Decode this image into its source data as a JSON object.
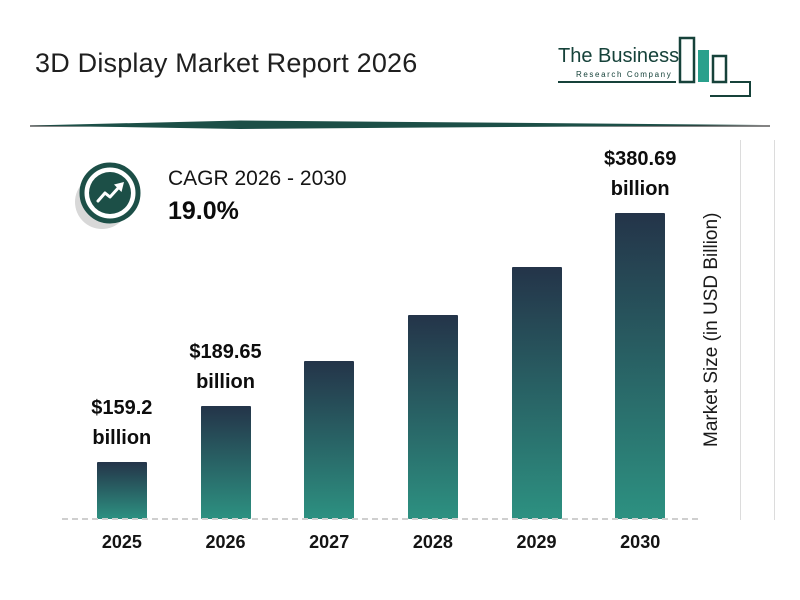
{
  "header": {
    "title": "3D Display Market Report 2026",
    "logo": {
      "line1": "The Business",
      "line2": "Research Company"
    }
  },
  "cagr": {
    "label": "CAGR 2026 - 2030",
    "value": "19.0%"
  },
  "chart_data": {
    "type": "bar",
    "title": "3D Display Market Report 2026",
    "ylabel": "Market Size (in USD Billion)",
    "categories": [
      "2025",
      "2026",
      "2027",
      "2028",
      "2029",
      "2030"
    ],
    "values": [
      159.2,
      189.65,
      225.7,
      268.6,
      319.6,
      380.69
    ],
    "value_labels": [
      "$159.2 billion",
      "$189.65 billion",
      "",
      "",
      "",
      "$380.69 billion"
    ],
    "ylim": [
      0,
      390
    ],
    "grid": "off",
    "legend": "none"
  },
  "colors": {
    "accent_teal": "#1c4f47",
    "logo_teal": "#2aa08c",
    "bar_top": "#243449",
    "bar_bottom": "#2d9181",
    "gray_circle": "#d8d8d8",
    "gridline": "#dcdcdc"
  }
}
